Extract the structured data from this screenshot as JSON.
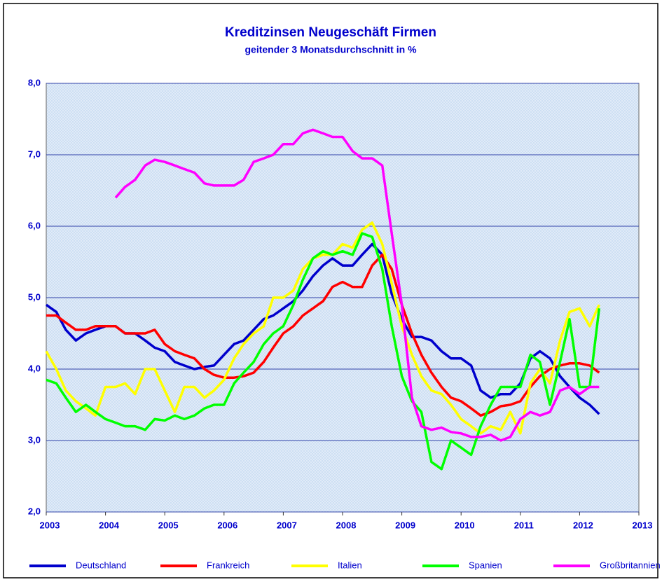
{
  "chart_data": {
    "type": "line",
    "title": "Kreditzinsen Neugeschäft Firmen",
    "subtitle": "geitender 3 Monatsdurchschnitt in %",
    "x": [
      2003,
      2003.17,
      2003.33,
      2003.5,
      2003.67,
      2003.83,
      2004,
      2004.17,
      2004.33,
      2004.5,
      2004.67,
      2004.83,
      2005,
      2005.17,
      2005.33,
      2005.5,
      2005.67,
      2005.83,
      2006,
      2006.17,
      2006.33,
      2006.5,
      2006.67,
      2006.83,
      2007,
      2007.17,
      2007.33,
      2007.5,
      2007.67,
      2007.83,
      2008,
      2008.17,
      2008.33,
      2008.5,
      2008.67,
      2008.83,
      2009,
      2009.17,
      2009.33,
      2009.5,
      2009.67,
      2009.83,
      2010,
      2010.17,
      2010.33,
      2010.5,
      2010.67,
      2010.83,
      2011,
      2011.17,
      2011.33,
      2011.5,
      2011.67,
      2011.83,
      2012,
      2012.17,
      2012.33
    ],
    "series": [
      {
        "name": "Deutschland",
        "color": "#0000cc",
        "values": [
          4.9,
          4.8,
          4.55,
          4.4,
          4.5,
          4.55,
          4.6,
          4.6,
          4.5,
          4.5,
          4.4,
          4.3,
          4.25,
          4.1,
          4.05,
          4.0,
          4.03,
          4.05,
          4.2,
          4.35,
          4.4,
          4.55,
          4.7,
          4.75,
          4.85,
          4.95,
          5.1,
          5.3,
          5.45,
          5.55,
          5.45,
          5.45,
          5.6,
          5.75,
          5.6,
          5.05,
          4.7,
          4.45,
          4.45,
          4.4,
          4.25,
          4.15,
          4.15,
          4.05,
          3.7,
          3.6,
          3.65,
          3.65,
          3.8,
          4.15,
          4.25,
          4.15,
          3.9,
          3.75,
          3.6,
          3.5,
          3.37
        ]
      },
      {
        "name": "Frankreich",
        "color": "#ff0000",
        "values": [
          4.75,
          4.75,
          4.65,
          4.55,
          4.55,
          4.6,
          4.6,
          4.6,
          4.5,
          4.5,
          4.5,
          4.55,
          4.35,
          4.25,
          4.2,
          4.15,
          4.0,
          3.92,
          3.88,
          3.88,
          3.9,
          3.95,
          4.1,
          4.3,
          4.5,
          4.6,
          4.75,
          4.85,
          4.95,
          5.15,
          5.22,
          5.15,
          5.15,
          5.45,
          5.6,
          5.4,
          4.9,
          4.5,
          4.2,
          3.95,
          3.75,
          3.6,
          3.55,
          3.45,
          3.35,
          3.4,
          3.48,
          3.5,
          3.55,
          3.75,
          3.9,
          4.0,
          4.05,
          4.08,
          4.08,
          4.05,
          3.95
        ]
      },
      {
        "name": "Italien",
        "color": "#ffff00",
        "values": [
          4.25,
          4.0,
          3.7,
          3.55,
          3.45,
          3.35,
          3.75,
          3.75,
          3.8,
          3.65,
          4.0,
          4.0,
          3.7,
          3.4,
          3.75,
          3.75,
          3.6,
          3.7,
          3.85,
          4.15,
          4.35,
          4.5,
          4.6,
          5.0,
          5.0,
          5.1,
          5.4,
          5.55,
          5.6,
          5.6,
          5.75,
          5.7,
          5.95,
          6.05,
          5.75,
          5.2,
          4.6,
          4.2,
          3.9,
          3.7,
          3.65,
          3.5,
          3.3,
          3.2,
          3.1,
          3.2,
          3.15,
          3.4,
          3.1,
          3.8,
          4.0,
          3.8,
          4.4,
          4.8,
          4.85,
          4.6,
          4.9
        ]
      },
      {
        "name": "Spanien",
        "color": "#00ff00",
        "values": [
          3.85,
          3.8,
          3.6,
          3.4,
          3.5,
          3.4,
          3.3,
          3.25,
          3.2,
          3.2,
          3.15,
          3.3,
          3.28,
          3.35,
          3.3,
          3.35,
          3.45,
          3.5,
          3.5,
          3.8,
          3.95,
          4.1,
          4.35,
          4.5,
          4.6,
          4.9,
          5.25,
          5.55,
          5.65,
          5.6,
          5.65,
          5.6,
          5.9,
          5.85,
          5.4,
          4.6,
          3.9,
          3.55,
          3.4,
          2.7,
          2.6,
          3.0,
          2.9,
          2.8,
          3.2,
          3.5,
          3.75,
          3.75,
          3.75,
          4.2,
          4.1,
          3.5,
          4.1,
          4.7,
          3.75,
          3.75,
          4.85
        ]
      },
      {
        "name": "Großbritannien",
        "color": "#ff00ff",
        "values": [
          null,
          null,
          null,
          null,
          null,
          null,
          null,
          6.4,
          6.55,
          6.65,
          6.85,
          6.93,
          6.9,
          6.85,
          6.8,
          6.75,
          6.6,
          6.57,
          6.57,
          6.57,
          6.65,
          6.9,
          6.95,
          7.0,
          7.15,
          7.15,
          7.3,
          7.35,
          7.3,
          7.25,
          7.25,
          7.05,
          6.95,
          6.95,
          6.85,
          5.9,
          4.9,
          3.6,
          3.2,
          3.15,
          3.18,
          3.12,
          3.1,
          3.05,
          3.05,
          3.08,
          3.0,
          3.05,
          3.3,
          3.4,
          3.35,
          3.4,
          3.7,
          3.75,
          3.65,
          3.75,
          3.75
        ]
      }
    ],
    "xlim": [
      2003,
      2013
    ],
    "xticks": [
      2003,
      2004,
      2005,
      2006,
      2007,
      2008,
      2009,
      2010,
      2011,
      2012,
      2013
    ],
    "ylim": [
      2,
      8
    ],
    "yticks": [
      {
        "value": 2,
        "label": "2,0"
      },
      {
        "value": 3,
        "label": "3,0"
      },
      {
        "value": 4,
        "label": "4,0"
      },
      {
        "value": 5,
        "label": "5,0"
      },
      {
        "value": 6,
        "label": "6,0"
      },
      {
        "value": 7,
        "label": "7,0"
      },
      {
        "value": 8,
        "label": "8,0"
      }
    ],
    "grid": true,
    "legend": "bottom"
  }
}
